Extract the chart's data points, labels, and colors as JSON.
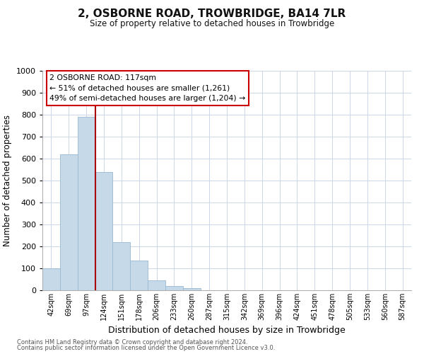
{
  "title": "2, OSBORNE ROAD, TROWBRIDGE, BA14 7LR",
  "subtitle": "Size of property relative to detached houses in Trowbridge",
  "xlabel": "Distribution of detached houses by size in Trowbridge",
  "ylabel": "Number of detached properties",
  "bar_labels": [
    "42sqm",
    "69sqm",
    "97sqm",
    "124sqm",
    "151sqm",
    "178sqm",
    "206sqm",
    "233sqm",
    "260sqm",
    "287sqm",
    "315sqm",
    "342sqm",
    "369sqm",
    "396sqm",
    "424sqm",
    "451sqm",
    "478sqm",
    "505sqm",
    "533sqm",
    "560sqm",
    "587sqm"
  ],
  "bar_values": [
    100,
    620,
    790,
    540,
    220,
    135,
    45,
    20,
    10,
    0,
    0,
    0,
    0,
    0,
    0,
    0,
    0,
    0,
    0,
    0,
    0
  ],
  "bar_color": "#c6d9e8",
  "bar_edge_color": "#9ab8cf",
  "vline_color": "#aa0000",
  "ylim": [
    0,
    1000
  ],
  "yticks": [
    0,
    100,
    200,
    300,
    400,
    500,
    600,
    700,
    800,
    900,
    1000
  ],
  "annotation_title": "2 OSBORNE ROAD: 117sqm",
  "annotation_line1": "← 51% of detached houses are smaller (1,261)",
  "annotation_line2": "49% of semi-detached houses are larger (1,204) →",
  "annotation_box_color": "#ffffff",
  "annotation_box_edge": "#cc0000",
  "footer_line1": "Contains HM Land Registry data © Crown copyright and database right 2024.",
  "footer_line2": "Contains public sector information licensed under the Open Government Licence v3.0.",
  "background_color": "#ffffff",
  "grid_color": "#ccd8e8"
}
